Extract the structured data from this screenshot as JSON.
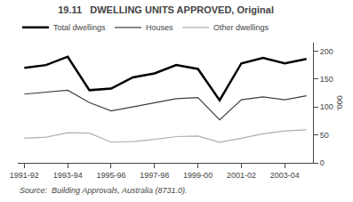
{
  "chart_data": {
    "type": "line",
    "title": "19.11   DWELLING UNITS APPROVED, Original",
    "ylabel": "'000",
    "annotations": [
      "Source:  Building Approvals, Australia (8731.0)."
    ],
    "categories": [
      "1991-92",
      null,
      "1993-94",
      null,
      "1995-96",
      null,
      "1997-98",
      null,
      "1999-00",
      null,
      "2001-02",
      null,
      "2003-04",
      null
    ],
    "series": [
      {
        "name": "Total dwellings",
        "color": "#000000",
        "values": [
          170,
          175,
          190,
          130,
          133,
          153,
          160,
          175,
          168,
          112,
          178,
          188,
          178,
          186
        ]
      },
      {
        "name": "Houses",
        "color": "#404040",
        "values": [
          123,
          126,
          130,
          108,
          93,
          100,
          107,
          115,
          117,
          77,
          113,
          118,
          113,
          120
        ]
      },
      {
        "name": "Other dwellings",
        "color": "#b0b0b0",
        "values": [
          44,
          46,
          54,
          53,
          37,
          38,
          42,
          47,
          48,
          37,
          44,
          52,
          57,
          59
        ]
      }
    ],
    "ylim": [
      0,
      215
    ],
    "yticks": [
      0,
      50,
      100,
      150,
      200
    ],
    "grid": false,
    "legend": "top"
  }
}
